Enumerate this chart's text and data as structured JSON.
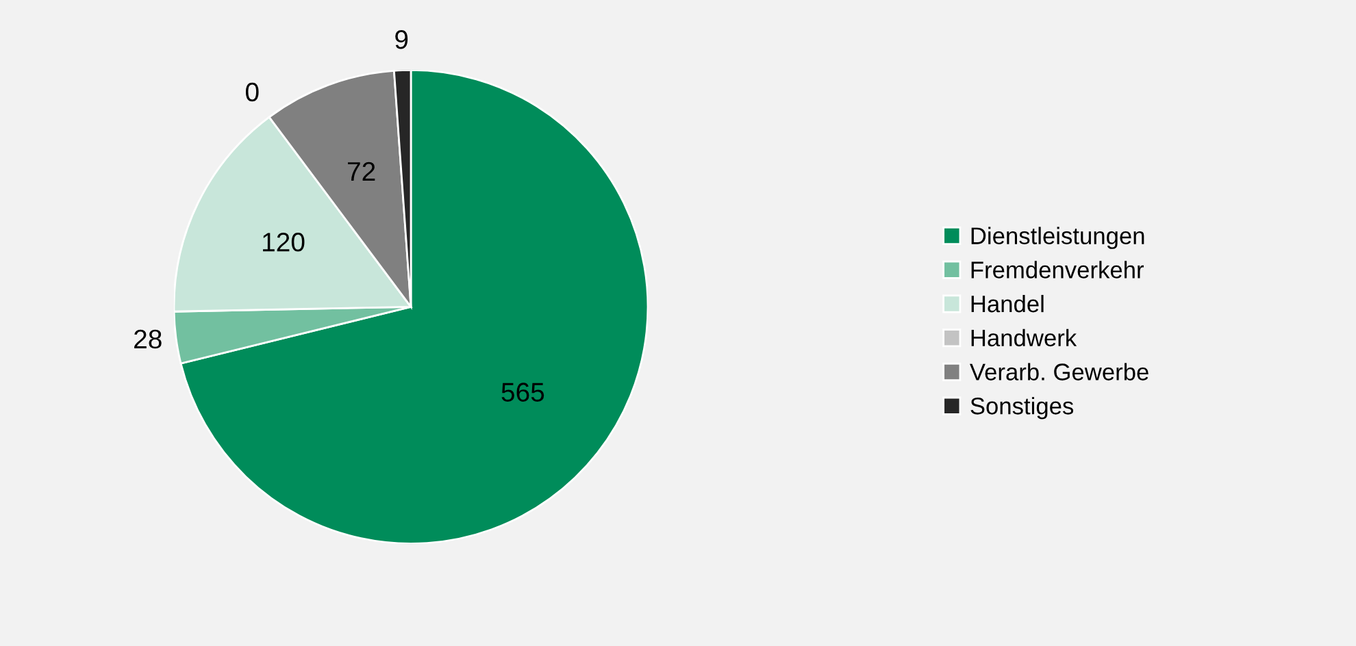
{
  "chart_data": {
    "type": "pie",
    "categories": [
      "Dienstleistungen",
      "Fremdenverkehr",
      "Handel",
      "Handwerk",
      "Verarb. Gewerbe",
      "Sonstiges"
    ],
    "values": [
      565,
      28,
      120,
      0,
      72,
      9
    ],
    "colors": [
      "#008c5a",
      "#72c0a0",
      "#c8e6da",
      "#c3c3c3",
      "#808080",
      "#262626"
    ],
    "value_labels": [
      "565",
      "28",
      "120",
      "0",
      "72",
      "9"
    ],
    "legend": "right"
  }
}
